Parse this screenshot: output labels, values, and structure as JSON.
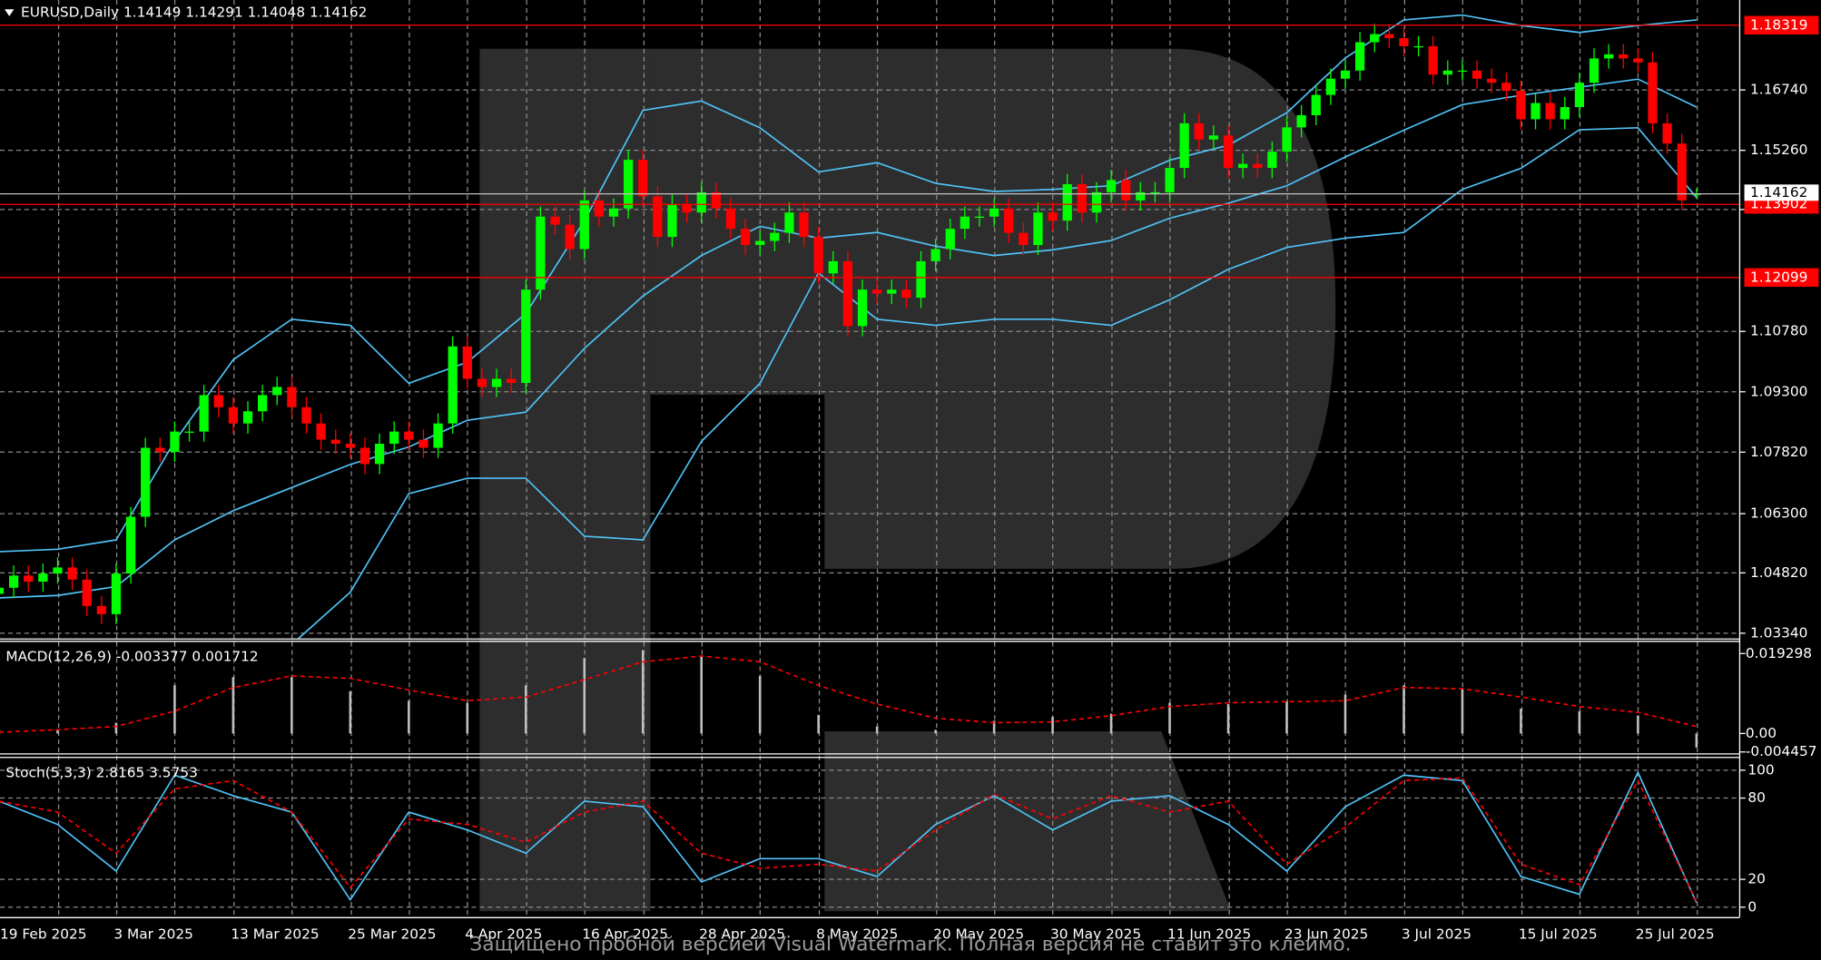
{
  "chart_data": {
    "type": "candlestick",
    "title": "EURUSD,Daily  1.14149 1.14291 1.14048 1.14162",
    "up_color": "#00ff00",
    "down_color": "#ff0000",
    "grid": true,
    "categories": [
      "19 Feb 2025",
      null,
      null,
      null,
      null,
      null,
      null,
      null,
      "3 Mar 2025",
      null,
      null,
      null,
      null,
      null,
      null,
      null,
      "13 Mar 2025",
      null,
      null,
      null,
      null,
      null,
      null,
      null,
      "25 Mar 2025",
      null,
      null,
      null,
      null,
      null,
      null,
      null,
      "4 Apr 2025",
      null,
      null,
      null,
      null,
      null,
      null,
      null,
      "16 Apr 2025",
      null,
      null,
      null,
      null,
      null,
      null,
      null,
      "28 Apr 2025",
      null,
      null,
      null,
      null,
      null,
      null,
      null,
      "8 May 2025",
      null,
      null,
      null,
      null,
      null,
      null,
      null,
      "20 May 2025",
      null,
      null,
      null,
      null,
      null,
      null,
      null,
      "30 May 2025",
      null,
      null,
      null,
      null,
      null,
      null,
      null,
      "11 Jun 2025",
      null,
      null,
      null,
      null,
      null,
      null,
      null,
      "23 Jun 2025",
      null,
      null,
      null,
      null,
      null,
      null,
      null,
      "3 Jul 2025",
      null,
      null,
      null,
      null,
      null,
      null,
      null,
      "15 Jul 2025",
      null,
      null,
      null,
      null,
      null,
      null,
      null,
      "25 Jul 2025",
      null,
      null,
      null,
      null
    ],
    "candles": [
      [
        1.043,
        1.047,
        1.0405,
        1.0445
      ],
      [
        1.0445,
        1.05,
        1.042,
        1.0475
      ],
      [
        1.0475,
        1.05,
        1.0435,
        1.046
      ],
      [
        1.046,
        1.0505,
        1.0435,
        1.048
      ],
      [
        1.048,
        1.052,
        1.0455,
        1.0495
      ],
      [
        1.0495,
        1.052,
        1.044,
        1.0465
      ],
      [
        1.0465,
        1.049,
        1.0375,
        1.04
      ],
      [
        1.04,
        1.0425,
        1.0355,
        1.038
      ],
      [
        1.038,
        1.0505,
        1.0355,
        1.048
      ],
      [
        1.048,
        1.0645,
        1.0455,
        1.062
      ],
      [
        1.062,
        1.0815,
        1.0595,
        1.079
      ],
      [
        1.079,
        1.0815,
        1.0755,
        1.078
      ],
      [
        1.078,
        1.0855,
        1.0755,
        1.083
      ],
      [
        1.083,
        1.0855,
        1.0805,
        1.083
      ],
      [
        1.083,
        1.0945,
        1.0805,
        1.092
      ],
      [
        1.092,
        1.0945,
        1.0865,
        1.089
      ],
      [
        1.089,
        1.0915,
        1.0825,
        1.085
      ],
      [
        1.085,
        1.0905,
        1.0825,
        1.088
      ],
      [
        1.088,
        1.0945,
        1.0855,
        1.092
      ],
      [
        1.092,
        1.0965,
        1.0895,
        1.094
      ],
      [
        1.094,
        1.0965,
        1.0865,
        1.089
      ],
      [
        1.089,
        1.0915,
        1.0825,
        1.085
      ],
      [
        1.085,
        1.0875,
        1.0785,
        1.081
      ],
      [
        1.081,
        1.0835,
        1.0775,
        1.08
      ],
      [
        1.08,
        1.0825,
        1.0765,
        1.079
      ],
      [
        1.079,
        1.0815,
        1.0725,
        1.075
      ],
      [
        1.075,
        1.0825,
        1.0725,
        1.08
      ],
      [
        1.08,
        1.0855,
        1.0775,
        1.083
      ],
      [
        1.083,
        1.0855,
        1.0785,
        1.081
      ],
      [
        1.081,
        1.0835,
        1.0765,
        1.079
      ],
      [
        1.079,
        1.0875,
        1.0765,
        1.085
      ],
      [
        1.085,
        1.1065,
        1.0825,
        1.104
      ],
      [
        1.104,
        1.1065,
        1.0935,
        1.096
      ],
      [
        1.096,
        1.0985,
        1.0915,
        1.094
      ],
      [
        1.094,
        1.0985,
        1.0915,
        1.096
      ],
      [
        1.096,
        1.0985,
        1.0925,
        1.095
      ],
      [
        1.095,
        1.1205,
        1.0925,
        1.118
      ],
      [
        1.118,
        1.1385,
        1.1155,
        1.136
      ],
      [
        1.136,
        1.1385,
        1.1315,
        1.134
      ],
      [
        1.134,
        1.1365,
        1.1255,
        1.128
      ],
      [
        1.128,
        1.1425,
        1.1255,
        1.14
      ],
      [
        1.14,
        1.1425,
        1.1335,
        1.136
      ],
      [
        1.136,
        1.1405,
        1.1335,
        1.138
      ],
      [
        1.138,
        1.1525,
        1.1355,
        1.15
      ],
      [
        1.15,
        1.1525,
        1.1385,
        1.141
      ],
      [
        1.141,
        1.1435,
        1.1285,
        1.131
      ],
      [
        1.131,
        1.1415,
        1.1285,
        1.139
      ],
      [
        1.139,
        1.1415,
        1.1345,
        1.137
      ],
      [
        1.137,
        1.1445,
        1.1345,
        1.142
      ],
      [
        1.142,
        1.1445,
        1.1355,
        1.138
      ],
      [
        1.138,
        1.1405,
        1.1305,
        1.133
      ],
      [
        1.133,
        1.1355,
        1.1265,
        1.129
      ],
      [
        1.129,
        1.1325,
        1.1265,
        1.13
      ],
      [
        1.13,
        1.1345,
        1.1275,
        1.132
      ],
      [
        1.132,
        1.1395,
        1.1295,
        1.137
      ],
      [
        1.137,
        1.1395,
        1.1285,
        1.131
      ],
      [
        1.131,
        1.1335,
        1.1195,
        1.122
      ],
      [
        1.122,
        1.1275,
        1.1195,
        1.125
      ],
      [
        1.125,
        1.1275,
        1.1065,
        1.109
      ],
      [
        1.109,
        1.1205,
        1.1065,
        1.118
      ],
      [
        1.118,
        1.1205,
        1.1145,
        1.117
      ],
      [
        1.117,
        1.1205,
        1.1145,
        1.118
      ],
      [
        1.118,
        1.1205,
        1.1135,
        1.116
      ],
      [
        1.116,
        1.1275,
        1.1135,
        1.125
      ],
      [
        1.125,
        1.1305,
        1.1225,
        1.128
      ],
      [
        1.128,
        1.1355,
        1.1255,
        1.133
      ],
      [
        1.133,
        1.1385,
        1.1305,
        1.136
      ],
      [
        1.136,
        1.1385,
        1.1335,
        1.136
      ],
      [
        1.136,
        1.1405,
        1.1335,
        1.138
      ],
      [
        1.138,
        1.1405,
        1.1295,
        1.132
      ],
      [
        1.132,
        1.1345,
        1.1265,
        1.129
      ],
      [
        1.129,
        1.1395,
        1.1265,
        1.137
      ],
      [
        1.137,
        1.1395,
        1.1325,
        1.135
      ],
      [
        1.135,
        1.1465,
        1.1325,
        1.144
      ],
      [
        1.144,
        1.1465,
        1.1345,
        1.137
      ],
      [
        1.137,
        1.1445,
        1.1345,
        1.142
      ],
      [
        1.142,
        1.1475,
        1.1395,
        1.145
      ],
      [
        1.145,
        1.1475,
        1.1375,
        1.14
      ],
      [
        1.14,
        1.1445,
        1.1375,
        1.142
      ],
      [
        1.142,
        1.1445,
        1.1395,
        1.142
      ],
      [
        1.142,
        1.1505,
        1.1395,
        1.148
      ],
      [
        1.148,
        1.1615,
        1.1455,
        1.159
      ],
      [
        1.159,
        1.1615,
        1.1525,
        1.155
      ],
      [
        1.155,
        1.1585,
        1.1525,
        1.156
      ],
      [
        1.156,
        1.1585,
        1.1455,
        1.148
      ],
      [
        1.148,
        1.1515,
        1.1455,
        1.149
      ],
      [
        1.149,
        1.1515,
        1.1455,
        1.148
      ],
      [
        1.148,
        1.1545,
        1.1455,
        1.152
      ],
      [
        1.152,
        1.1605,
        1.1495,
        1.158
      ],
      [
        1.158,
        1.1635,
        1.1555,
        1.161
      ],
      [
        1.161,
        1.1685,
        1.1585,
        1.166
      ],
      [
        1.166,
        1.1725,
        1.1635,
        1.17
      ],
      [
        1.17,
        1.1745,
        1.1675,
        1.172
      ],
      [
        1.172,
        1.1815,
        1.1695,
        1.179
      ],
      [
        1.179,
        1.1835,
        1.1765,
        1.181
      ],
      [
        1.181,
        1.1835,
        1.1775,
        1.18
      ],
      [
        1.18,
        1.1825,
        1.1755,
        1.178
      ],
      [
        1.178,
        1.1805,
        1.1755,
        1.178
      ],
      [
        1.178,
        1.1805,
        1.1685,
        1.171
      ],
      [
        1.171,
        1.1745,
        1.1685,
        1.172
      ],
      [
        1.172,
        1.1745,
        1.1695,
        1.172
      ],
      [
        1.172,
        1.1745,
        1.1675,
        1.17
      ],
      [
        1.17,
        1.1725,
        1.1665,
        1.169
      ],
      [
        1.169,
        1.1715,
        1.1645,
        1.167
      ],
      [
        1.167,
        1.1695,
        1.1575,
        1.16
      ],
      [
        1.16,
        1.1665,
        1.1575,
        1.164
      ],
      [
        1.164,
        1.1665,
        1.1575,
        1.16
      ],
      [
        1.16,
        1.1655,
        1.1575,
        1.163
      ],
      [
        1.163,
        1.1715,
        1.1605,
        1.169
      ],
      [
        1.169,
        1.1775,
        1.1665,
        1.175
      ],
      [
        1.175,
        1.1785,
        1.1725,
        1.176
      ],
      [
        1.176,
        1.1785,
        1.1725,
        1.175
      ],
      [
        1.175,
        1.1775,
        1.1715,
        1.174
      ],
      [
        1.174,
        1.1765,
        1.1565,
        1.159
      ],
      [
        1.159,
        1.1615,
        1.1515,
        1.154
      ],
      [
        1.154,
        1.1565,
        1.1375,
        1.14
      ],
      [
        1.14149,
        1.14291,
        1.14048,
        1.14162
      ]
    ],
    "ylim": [
      1.032,
      1.1894
    ],
    "yticks": [
      {
        "value": 1.0334,
        "label": "1.03340"
      },
      {
        "value": 1.0482,
        "label": "1.04820"
      },
      {
        "value": 1.063,
        "label": "1.06300"
      },
      {
        "value": 1.0782,
        "label": "1.07820"
      },
      {
        "value": 1.093,
        "label": "1.09300"
      },
      {
        "value": 1.1078,
        "label": "1.10780"
      },
      {
        "value": 1.1378,
        "label": "1.13780"
      },
      {
        "value": 1.1526,
        "label": "1.15260"
      },
      {
        "value": 1.1674,
        "label": "1.16740"
      }
    ],
    "levels": [
      1.18319,
      1.13902,
      1.12099
    ],
    "level_color": "#ff0000",
    "current_price": 1.14162,
    "bollinger": {
      "color": "#4fc3f7",
      "x": [
        0,
        4,
        8,
        12,
        16,
        20,
        24,
        28,
        32,
        36,
        40,
        44,
        48,
        52,
        56,
        60,
        64,
        68,
        72,
        76,
        80,
        84,
        88,
        92,
        96,
        100,
        104,
        108,
        112,
        116
      ],
      "upper": [
        1.0534,
        1.054,
        1.0563,
        1.0806,
        1.1007,
        1.1107,
        1.1092,
        1.0949,
        1.1001,
        1.1121,
        1.135,
        1.1622,
        1.1645,
        1.1579,
        1.147,
        1.1493,
        1.1442,
        1.1422,
        1.1427,
        1.1436,
        1.1499,
        1.1536,
        1.1616,
        1.1751,
        1.1845,
        1.1857,
        1.1831,
        1.1814,
        1.1831,
        1.1845
      ],
      "middle": [
        1.042,
        1.0426,
        1.0448,
        1.0563,
        1.0635,
        1.0692,
        1.0749,
        1.0792,
        1.0858,
        1.0878,
        1.1035,
        1.1164,
        1.1264,
        1.1336,
        1.1307,
        1.1321,
        1.1287,
        1.1264,
        1.1278,
        1.1301,
        1.1356,
        1.1393,
        1.1436,
        1.1507,
        1.1573,
        1.1636,
        1.1659,
        1.1679,
        1.1699,
        1.163
      ],
      "lower": [
        1.0177,
        1.0148,
        1.0119,
        1.0148,
        1.0205,
        1.0305,
        1.0434,
        1.0677,
        1.0715,
        1.0715,
        1.0572,
        1.0563,
        1.0806,
        1.0949,
        1.1221,
        1.1107,
        1.1092,
        1.1107,
        1.1107,
        1.1092,
        1.1155,
        1.123,
        1.1284,
        1.1307,
        1.1321,
        1.1427,
        1.1479,
        1.1574,
        1.1579,
        1.1407
      ]
    },
    "macd": {
      "title": "MACD(12,26,9) -0.003377 0.001712",
      "histogram_color": "#c0c0c0",
      "signal_color": "#ff0000",
      "x": [
        0,
        4,
        8,
        12,
        16,
        20,
        24,
        28,
        32,
        36,
        40,
        44,
        48,
        52,
        56,
        60,
        64,
        68,
        72,
        76,
        80,
        84,
        88,
        92,
        96,
        100,
        104,
        108,
        112,
        116
      ],
      "histogram": [
        0.0009,
        0.0009,
        0.0026,
        0.0116,
        0.0136,
        0.0136,
        0.0102,
        0.0079,
        0.0074,
        0.0116,
        0.0182,
        0.0201,
        0.0187,
        0.0139,
        0.0045,
        0.0017,
        0.0009,
        0.0031,
        0.004,
        0.0048,
        0.0074,
        0.0071,
        0.0077,
        0.0094,
        0.0116,
        0.0108,
        0.006,
        0.0054,
        0.0043,
        -0.0034
      ],
      "signal": [
        0.0003,
        0.0009,
        0.0017,
        0.0054,
        0.0111,
        0.0139,
        0.0133,
        0.0105,
        0.0079,
        0.0088,
        0.013,
        0.0173,
        0.0187,
        0.0173,
        0.0116,
        0.0071,
        0.0037,
        0.0026,
        0.0028,
        0.0043,
        0.0065,
        0.0074,
        0.0077,
        0.0079,
        0.0111,
        0.0108,
        0.0088,
        0.0065,
        0.0051,
        0.0017
      ],
      "ylim": [
        -0.0048,
        0.0221
      ],
      "yticks": [
        0.019298,
        {
          "value": 0,
          "label": "0.00"
        },
        -0.004457
      ]
    },
    "stochastic": {
      "title": "Stoch(5,3,3) 2.8165 3.5753",
      "main_color": "#4fc3f7",
      "signal_color": "#ff0000",
      "x": [
        0,
        4,
        8,
        12,
        16,
        20,
        24,
        28,
        32,
        36,
        40,
        44,
        48,
        52,
        56,
        60,
        64,
        68,
        72,
        76,
        80,
        84,
        88,
        92,
        96,
        100,
        104,
        108,
        112,
        116
      ],
      "main": [
        77,
        60,
        26,
        96,
        81,
        69,
        5,
        69,
        56,
        39,
        77,
        73,
        18,
        35,
        35,
        22,
        60,
        81,
        56,
        77,
        81,
        60,
        26,
        73,
        96,
        92,
        22,
        9,
        98,
        2.8
      ],
      "signal": [
        77,
        69,
        39,
        86,
        92,
        69,
        14,
        64,
        60,
        47,
        69,
        77,
        39,
        28,
        31,
        26,
        56,
        82,
        64,
        81,
        69,
        77,
        31,
        58,
        92,
        94,
        31,
        16,
        92,
        3.6
      ],
      "ylim": [
        -7.6,
        108.5
      ],
      "yticks": [
        100,
        80,
        20,
        0
      ]
    }
  },
  "watermark": "Защищено пробной версией Visual Watermark. Полная версия не ставит это клеймо."
}
